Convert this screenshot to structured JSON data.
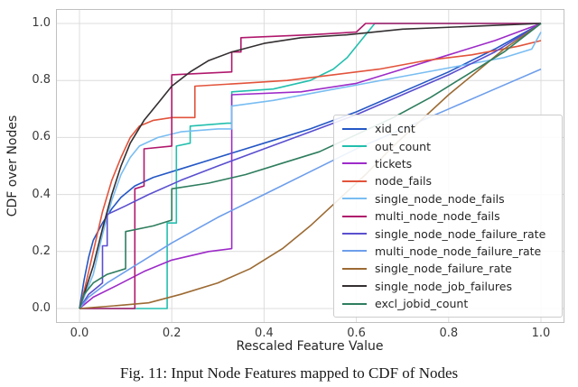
{
  "figure": {
    "caption": "Fig. 11: Input Node Features mapped to CDF of Nodes"
  },
  "chart_data": {
    "type": "line",
    "title": "",
    "xlabel": "Rescaled Feature Value",
    "ylabel": "CDF over Nodes",
    "xlim": [
      0.0,
      1.0
    ],
    "ylim": [
      0.0,
      1.0
    ],
    "xticks": [
      "0.0",
      "0.2",
      "0.4",
      "0.6",
      "0.8",
      "1.0"
    ],
    "yticks": [
      "0.0",
      "0.2",
      "0.4",
      "0.6",
      "0.8",
      "1.0"
    ],
    "grid": true,
    "grid_color": "#dcdcdc",
    "spine_color": "#c0c0c0",
    "legend_position": "inside lower right",
    "series": [
      {
        "name": "xid_cnt",
        "color": "#2457c5",
        "points": [
          [
            0,
            0
          ],
          [
            0.01,
            0.1
          ],
          [
            0.02,
            0.18
          ],
          [
            0.03,
            0.24
          ],
          [
            0.05,
            0.3
          ],
          [
            0.07,
            0.35
          ],
          [
            0.09,
            0.39
          ],
          [
            0.12,
            0.43
          ],
          [
            0.16,
            0.46
          ],
          [
            0.22,
            0.49
          ],
          [
            0.3,
            0.53
          ],
          [
            0.4,
            0.58
          ],
          [
            0.5,
            0.63
          ],
          [
            0.6,
            0.69
          ],
          [
            0.7,
            0.76
          ],
          [
            0.8,
            0.83
          ],
          [
            0.9,
            0.91
          ],
          [
            1.0,
            1.0
          ]
        ]
      },
      {
        "name": "out_count",
        "color": "#23bfae",
        "points": [
          [
            0,
            0
          ],
          [
            0.19,
            0.0
          ],
          [
            0.19,
            0.3
          ],
          [
            0.21,
            0.3
          ],
          [
            0.21,
            0.57
          ],
          [
            0.24,
            0.58
          ],
          [
            0.24,
            0.64
          ],
          [
            0.32,
            0.65
          ],
          [
            0.33,
            0.65
          ],
          [
            0.33,
            0.76
          ],
          [
            0.42,
            0.77
          ],
          [
            0.5,
            0.8
          ],
          [
            0.55,
            0.84
          ],
          [
            0.58,
            0.88
          ],
          [
            0.6,
            0.92
          ],
          [
            0.62,
            0.96
          ],
          [
            0.64,
            1.0
          ],
          [
            1.0,
            1.0
          ]
        ]
      },
      {
        "name": "tickets",
        "color": "#9d2bc8",
        "points": [
          [
            0,
            0
          ],
          [
            0.03,
            0.04
          ],
          [
            0.08,
            0.08
          ],
          [
            0.14,
            0.13
          ],
          [
            0.2,
            0.17
          ],
          [
            0.28,
            0.2
          ],
          [
            0.33,
            0.21
          ],
          [
            0.33,
            0.75
          ],
          [
            0.48,
            0.76
          ],
          [
            0.6,
            0.79
          ],
          [
            0.7,
            0.84
          ],
          [
            0.8,
            0.89
          ],
          [
            0.9,
            0.94
          ],
          [
            1.0,
            1.0
          ]
        ]
      },
      {
        "name": "node_fails",
        "color": "#e2533b",
        "points": [
          [
            0,
            0
          ],
          [
            0.01,
            0.06
          ],
          [
            0.03,
            0.2
          ],
          [
            0.05,
            0.34
          ],
          [
            0.07,
            0.45
          ],
          [
            0.09,
            0.53
          ],
          [
            0.11,
            0.6
          ],
          [
            0.13,
            0.64
          ],
          [
            0.16,
            0.66
          ],
          [
            0.2,
            0.67
          ],
          [
            0.25,
            0.67
          ],
          [
            0.25,
            0.78
          ],
          [
            0.35,
            0.79
          ],
          [
            0.45,
            0.8
          ],
          [
            0.55,
            0.82
          ],
          [
            0.65,
            0.84
          ],
          [
            0.75,
            0.87
          ],
          [
            0.85,
            0.89
          ],
          [
            0.95,
            0.92
          ],
          [
            1.0,
            0.94
          ]
        ]
      },
      {
        "name": "single_node_node_fails",
        "color": "#79bdf2",
        "points": [
          [
            0,
            0
          ],
          [
            0.03,
            0.12
          ],
          [
            0.05,
            0.26
          ],
          [
            0.07,
            0.38
          ],
          [
            0.09,
            0.47
          ],
          [
            0.11,
            0.53
          ],
          [
            0.13,
            0.57
          ],
          [
            0.17,
            0.6
          ],
          [
            0.22,
            0.62
          ],
          [
            0.3,
            0.63
          ],
          [
            0.33,
            0.63
          ],
          [
            0.33,
            0.71
          ],
          [
            0.42,
            0.73
          ],
          [
            0.52,
            0.76
          ],
          [
            0.62,
            0.79
          ],
          [
            0.72,
            0.82
          ],
          [
            0.82,
            0.85
          ],
          [
            0.92,
            0.88
          ],
          [
            0.98,
            0.91
          ],
          [
            1.0,
            0.97
          ]
        ]
      },
      {
        "name": "multi_node_node_fails",
        "color": "#b0186c",
        "points": [
          [
            0,
            0
          ],
          [
            0.12,
            0.0
          ],
          [
            0.12,
            0.42
          ],
          [
            0.14,
            0.43
          ],
          [
            0.14,
            0.56
          ],
          [
            0.2,
            0.57
          ],
          [
            0.2,
            0.82
          ],
          [
            0.33,
            0.83
          ],
          [
            0.33,
            0.9
          ],
          [
            0.35,
            0.9
          ],
          [
            0.35,
            0.95
          ],
          [
            0.5,
            0.96
          ],
          [
            0.6,
            0.97
          ],
          [
            0.62,
            1.0
          ],
          [
            1.0,
            1.0
          ]
        ]
      },
      {
        "name": "single_node_node_failure_rate",
        "color": "#5a4fcf",
        "points": [
          [
            0,
            0
          ],
          [
            0.02,
            0.05
          ],
          [
            0.05,
            0.09
          ],
          [
            0.05,
            0.22
          ],
          [
            0.06,
            0.22
          ],
          [
            0.06,
            0.33
          ],
          [
            0.1,
            0.36
          ],
          [
            0.15,
            0.4
          ],
          [
            0.22,
            0.45
          ],
          [
            0.3,
            0.5
          ],
          [
            0.4,
            0.56
          ],
          [
            0.5,
            0.62
          ],
          [
            0.6,
            0.68
          ],
          [
            0.7,
            0.75
          ],
          [
            0.8,
            0.82
          ],
          [
            0.9,
            0.9
          ],
          [
            1.0,
            1.0
          ]
        ]
      },
      {
        "name": "multi_node_node_failure_rate",
        "color": "#6d9eeb",
        "points": [
          [
            0,
            0
          ],
          [
            0.02,
            0.04
          ],
          [
            0.06,
            0.09
          ],
          [
            0.12,
            0.15
          ],
          [
            0.2,
            0.23
          ],
          [
            0.3,
            0.32
          ],
          [
            0.4,
            0.4
          ],
          [
            0.5,
            0.48
          ],
          [
            0.6,
            0.56
          ],
          [
            0.7,
            0.63
          ],
          [
            0.8,
            0.7
          ],
          [
            0.9,
            0.77
          ],
          [
            1.0,
            0.84
          ]
        ]
      },
      {
        "name": "single_node_failure_rate",
        "color": "#9c6a33",
        "points": [
          [
            0,
            0
          ],
          [
            0.08,
            0.01
          ],
          [
            0.15,
            0.02
          ],
          [
            0.22,
            0.05
          ],
          [
            0.3,
            0.09
          ],
          [
            0.37,
            0.14
          ],
          [
            0.44,
            0.21
          ],
          [
            0.5,
            0.29
          ],
          [
            0.56,
            0.38
          ],
          [
            0.62,
            0.47
          ],
          [
            0.68,
            0.57
          ],
          [
            0.74,
            0.66
          ],
          [
            0.8,
            0.75
          ],
          [
            0.86,
            0.83
          ],
          [
            0.92,
            0.91
          ],
          [
            1.0,
            1.0
          ]
        ]
      },
      {
        "name": "single_node_job_failures",
        "color": "#342f31",
        "points": [
          [
            0,
            0
          ],
          [
            0.01,
            0.05
          ],
          [
            0.03,
            0.15
          ],
          [
            0.05,
            0.28
          ],
          [
            0.07,
            0.4
          ],
          [
            0.09,
            0.5
          ],
          [
            0.11,
            0.58
          ],
          [
            0.14,
            0.66
          ],
          [
            0.17,
            0.72
          ],
          [
            0.2,
            0.78
          ],
          [
            0.24,
            0.83
          ],
          [
            0.28,
            0.87
          ],
          [
            0.33,
            0.9
          ],
          [
            0.4,
            0.93
          ],
          [
            0.48,
            0.95
          ],
          [
            0.58,
            0.96
          ],
          [
            0.7,
            0.98
          ],
          [
            0.85,
            0.99
          ],
          [
            1.0,
            1.0
          ]
        ]
      },
      {
        "name": "excl_jobid_count",
        "color": "#2e7d5e",
        "points": [
          [
            0,
            0
          ],
          [
            0.01,
            0.05
          ],
          [
            0.03,
            0.09
          ],
          [
            0.06,
            0.12
          ],
          [
            0.1,
            0.14
          ],
          [
            0.1,
            0.27
          ],
          [
            0.16,
            0.29
          ],
          [
            0.2,
            0.31
          ],
          [
            0.2,
            0.42
          ],
          [
            0.28,
            0.44
          ],
          [
            0.36,
            0.47
          ],
          [
            0.44,
            0.51
          ],
          [
            0.52,
            0.55
          ],
          [
            0.6,
            0.61
          ],
          [
            0.68,
            0.67
          ],
          [
            0.76,
            0.74
          ],
          [
            0.84,
            0.82
          ],
          [
            0.92,
            0.9
          ],
          [
            1.0,
            1.0
          ]
        ]
      }
    ]
  }
}
